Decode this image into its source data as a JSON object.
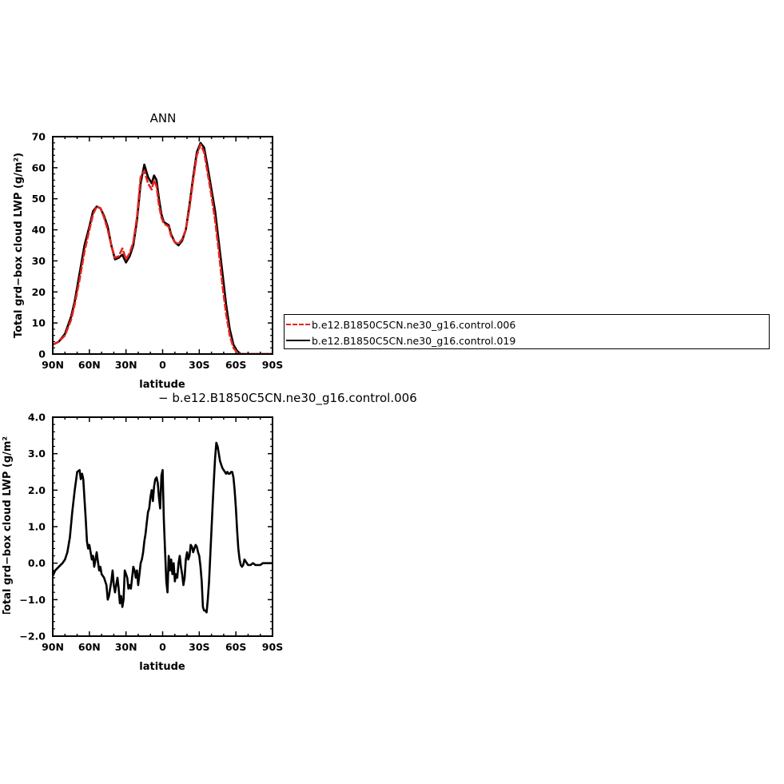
{
  "chart_data": [
    {
      "type": "line",
      "title": "ANN",
      "xlabel": "latitude",
      "ylabel": "Total grd−box cloud LWP (g/m²)",
      "x_ticks": [
        "90N",
        "60N",
        "30N",
        "0",
        "30S",
        "60S",
        "90S"
      ],
      "y_ticks": [
        "0",
        "10",
        "20",
        "30",
        "40",
        "50",
        "60",
        "70"
      ],
      "xlim": [
        90,
        -90
      ],
      "ylim": [
        0,
        70
      ],
      "series": [
        {
          "name": "b.e12.B1850C5CN.ne30_g16.control.006",
          "color": "#e8211c",
          "style": "dashed",
          "x": [
            90,
            85,
            80,
            75,
            72,
            68,
            64,
            60,
            57,
            54,
            51,
            48,
            45,
            42,
            39,
            36,
            33,
            30,
            27,
            24,
            21,
            18,
            15,
            12,
            9,
            7,
            5,
            3,
            1,
            -1,
            -3,
            -5,
            -7,
            -10,
            -13,
            -16,
            -19,
            -22,
            -25,
            -28,
            -31,
            -34,
            -37,
            -40,
            -43,
            -46,
            -49,
            -52,
            -55,
            -58,
            -61,
            -64,
            -67,
            -70,
            -73,
            -76,
            -80,
            -85,
            -90
          ],
          "y": [
            3,
            4,
            6,
            11,
            16,
            24,
            33,
            40,
            45,
            47.5,
            47,
            44,
            40,
            35,
            31,
            31.5,
            34,
            30.5,
            32.5,
            36,
            44,
            57,
            59,
            55,
            53,
            56,
            54,
            48,
            44,
            42,
            41.5,
            41,
            38,
            36,
            35.5,
            37,
            40,
            47,
            56,
            64,
            67.5,
            65,
            58,
            51,
            43,
            33,
            22,
            13,
            6,
            2,
            0.5,
            0,
            0,
            0,
            0,
            0,
            0,
            0,
            0
          ]
        },
        {
          "name": "b.e12.B1850C5CN.ne30_g16.control.019",
          "color": "#000000",
          "style": "solid",
          "x": [
            90,
            85,
            80,
            75,
            72,
            68,
            64,
            60,
            57,
            54,
            51,
            48,
            45,
            42,
            39,
            36,
            33,
            30,
            27,
            24,
            21,
            18,
            15,
            12,
            9,
            7,
            5,
            3,
            1,
            -1,
            -3,
            -5,
            -7,
            -10,
            -13,
            -16,
            -19,
            -22,
            -25,
            -28,
            -31,
            -34,
            -37,
            -40,
            -43,
            -46,
            -49,
            -52,
            -55,
            -58,
            -61,
            -64,
            -67,
            -70,
            -73,
            -76,
            -80,
            -85,
            -90
          ],
          "y": [
            3,
            4,
            6.5,
            12,
            17,
            26,
            35,
            41,
            46,
            47.5,
            47,
            44.5,
            41,
            35,
            30.5,
            31,
            32,
            29.5,
            31.5,
            35,
            43,
            55,
            61,
            57,
            55,
            57.5,
            56,
            50,
            45,
            42.5,
            42,
            41.5,
            38.5,
            36,
            35,
            36.5,
            40,
            48,
            57,
            65,
            68,
            66.5,
            60,
            53,
            46,
            36,
            26,
            16,
            8,
            3,
            1,
            0,
            0,
            0,
            0,
            0,
            0,
            0,
            0
          ]
        }
      ]
    },
    {
      "type": "line",
      "title": "− b.e12.B1850C5CN.ne30_g16.control.006",
      "xlabel": "latitude",
      "ylabel": "Total grd−box cloud LWP (g/m²)",
      "x_ticks": [
        "90N",
        "60N",
        "30N",
        "0",
        "30S",
        "60S",
        "90S"
      ],
      "y_ticks": [
        "−2.0",
        "−1.0",
        "0.0",
        "1.0",
        "2.0",
        "3.0",
        "4.0"
      ],
      "xlim": [
        90,
        -90
      ],
      "ylim": [
        -2,
        4
      ],
      "series": [
        {
          "color": "#000000",
          "x": [
            90,
            88,
            85,
            82,
            80,
            78,
            76,
            74,
            72,
            70,
            68,
            67,
            66,
            65,
            63,
            62,
            61,
            60,
            59,
            58,
            57,
            56,
            55,
            54,
            53,
            52,
            51,
            50,
            48,
            46,
            45,
            44,
            43,
            42,
            41,
            40,
            39,
            38,
            37,
            36,
            35,
            34,
            33,
            32,
            31,
            30,
            29,
            28,
            27,
            26,
            25,
            24,
            23,
            22,
            21,
            20,
            19,
            18,
            17,
            16,
            15,
            14,
            13,
            12,
            11,
            10,
            9,
            8,
            7,
            6,
            5,
            4,
            3,
            2,
            1,
            0,
            -1,
            -2,
            -3,
            -4,
            -5,
            -6,
            -7,
            -8,
            -9,
            -10,
            -11,
            -12,
            -13,
            -14,
            -15,
            -16,
            -17,
            -18,
            -19,
            -20,
            -21,
            -22,
            -23,
            -24,
            -25,
            -26,
            -27,
            -28,
            -29,
            -30,
            -31,
            -32,
            -33,
            -34,
            -35,
            -36,
            -37,
            -38,
            -39,
            -40,
            -41,
            -42,
            -43,
            -44,
            -45,
            -46,
            -47,
            -48,
            -49,
            -50,
            -51,
            -52,
            -53,
            -54,
            -55,
            -56,
            -57,
            -58,
            -59,
            -60,
            -61,
            -62,
            -63,
            -64,
            -65,
            -66,
            -67,
            -68,
            -70,
            -72,
            -74,
            -76,
            -78,
            -80,
            -82,
            -84,
            -86,
            -88,
            -90
          ],
          "y": [
            -0.35,
            -0.2,
            -0.1,
            0.0,
            0.1,
            0.3,
            0.7,
            1.4,
            2.0,
            2.5,
            2.55,
            2.3,
            2.45,
            2.3,
            1.2,
            0.6,
            0.4,
            0.5,
            0.3,
            0.1,
            0.2,
            -0.1,
            0.1,
            0.3,
            0.05,
            -0.2,
            -0.1,
            -0.3,
            -0.4,
            -0.6,
            -1.0,
            -0.9,
            -0.7,
            -0.5,
            -0.2,
            -0.6,
            -0.8,
            -0.6,
            -0.4,
            -0.7,
            -1.1,
            -0.9,
            -1.2,
            -1.0,
            -0.2,
            -0.3,
            -0.4,
            -0.7,
            -0.6,
            -0.7,
            -0.4,
            -0.1,
            -0.2,
            -0.4,
            -0.2,
            -0.6,
            -0.3,
            0.0,
            0.1,
            0.3,
            0.6,
            0.8,
            1.1,
            1.4,
            1.5,
            1.8,
            2.0,
            1.7,
            2.1,
            2.3,
            2.35,
            2.2,
            1.8,
            1.5,
            2.4,
            2.55,
            1.2,
            0.3,
            -0.5,
            -0.8,
            0.2,
            -0.2,
            0.1,
            -0.3,
            0.0,
            -0.5,
            -0.3,
            -0.4,
            0.0,
            0.2,
            -0.1,
            -0.3,
            -0.6,
            -0.4,
            0.1,
            0.3,
            0.1,
            0.2,
            0.5,
            0.45,
            0.3,
            0.4,
            0.5,
            0.45,
            0.3,
            0.2,
            -0.1,
            -0.5,
            -1.2,
            -1.3,
            -1.3,
            -1.35,
            -1.0,
            -0.5,
            0.2,
            0.9,
            1.6,
            2.3,
            2.9,
            3.3,
            3.2,
            3.0,
            2.8,
            2.7,
            2.6,
            2.55,
            2.5,
            2.45,
            2.5,
            2.45,
            2.45,
            2.5,
            2.5,
            2.35,
            2.0,
            1.5,
            0.9,
            0.4,
            0.1,
            -0.05,
            -0.1,
            -0.05,
            0.1,
            0.05,
            -0.05,
            -0.05,
            0.0,
            -0.05,
            -0.05,
            -0.05,
            0.0,
            0.0,
            0.0,
            0.0,
            0.0
          ]
        }
      ]
    }
  ]
}
